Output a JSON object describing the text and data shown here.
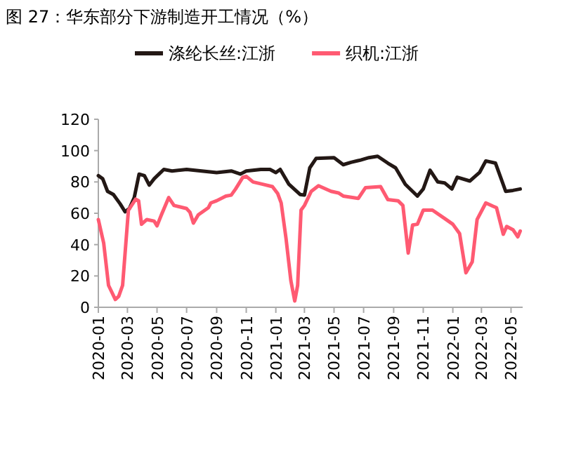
{
  "chart_data": {
    "type": "line",
    "title": "图 27：华东部分下游制造开工情况（%）",
    "legend": "top",
    "marker": "none",
    "line_style": "solid",
    "grid": false,
    "xlim": [
      "2020-01-01",
      "2022-05-25"
    ],
    "xticks": [
      "2020-01",
      "2020-03",
      "2020-05",
      "2020-07",
      "2020-09",
      "2020-11",
      "2021-01",
      "2021-03",
      "2021-05",
      "2021-07",
      "2021-09",
      "2021-11",
      "2022-01",
      "2022-03",
      "2022-05"
    ],
    "ylim": [
      0,
      120
    ],
    "yticks": [
      0,
      20,
      40,
      60,
      80,
      100,
      120
    ],
    "series": [
      {
        "name": "涤纶长丝:江浙",
        "color": "#231815",
        "x": [
          "2020-01-01",
          "2020-01-10",
          "2020-01-20",
          "2020-02-01",
          "2020-02-15",
          "2020-02-25",
          "2020-03-05",
          "2020-03-15",
          "2020-03-25",
          "2020-04-05",
          "2020-04-15",
          "2020-04-25",
          "2020-05-05",
          "2020-05-15",
          "2020-06-01",
          "2020-07-01",
          "2020-08-01",
          "2020-09-01",
          "2020-10-01",
          "2020-10-20",
          "2020-11-01",
          "2020-12-01",
          "2020-12-20",
          "2021-01-01",
          "2021-01-10",
          "2021-01-28",
          "2021-02-20",
          "2021-03-01",
          "2021-03-12",
          "2021-03-25",
          "2021-05-01",
          "2021-05-20",
          "2021-06-05",
          "2021-06-25",
          "2021-07-12",
          "2021-07-30",
          "2021-08-20",
          "2021-09-05",
          "2021-09-25",
          "2021-10-20",
          "2021-11-01",
          "2021-11-15",
          "2021-12-01",
          "2021-12-15",
          "2021-12-30",
          "2022-01-10",
          "2022-02-05",
          "2022-02-25",
          "2022-03-10",
          "2022-03-30",
          "2022-04-20",
          "2022-05-05",
          "2022-05-20"
        ],
        "values": [
          84,
          82,
          74,
          72,
          66,
          61,
          63,
          70,
          85,
          84,
          78,
          82,
          85,
          88,
          87,
          88,
          87,
          86,
          87,
          85,
          87,
          88,
          88,
          86,
          88,
          78.5,
          72,
          71.6,
          89,
          95,
          95.5,
          91,
          92.5,
          94,
          95.5,
          96.4,
          92,
          89,
          78.5,
          71,
          75.5,
          87.5,
          80,
          79.4,
          75.5,
          83,
          80.6,
          86,
          93.4,
          92,
          74,
          74.6,
          75.5
        ]
      },
      {
        "name": "织机:江浙",
        "color": "#ff5a72",
        "x": [
          "2020-01-01",
          "2020-01-12",
          "2020-01-22",
          "2020-02-05",
          "2020-02-12",
          "2020-02-20",
          "2020-03-03",
          "2020-03-18",
          "2020-03-24",
          "2020-03-30",
          "2020-04-10",
          "2020-04-25",
          "2020-05-01",
          "2020-05-10",
          "2020-05-25",
          "2020-06-05",
          "2020-07-01",
          "2020-07-08",
          "2020-07-15",
          "2020-07-25",
          "2020-08-15",
          "2020-08-20",
          "2020-09-01",
          "2020-09-20",
          "2020-10-01",
          "2020-10-10",
          "2020-10-25",
          "2020-11-01",
          "2020-11-15",
          "2020-12-05",
          "2020-12-25",
          "2021-01-05",
          "2021-01-12",
          "2021-01-22",
          "2021-02-01",
          "2021-02-09",
          "2021-02-15",
          "2021-02-22",
          "2021-03-01",
          "2021-03-15",
          "2021-03-30",
          "2021-04-25",
          "2021-05-10",
          "2021-05-20",
          "2021-06-20",
          "2021-07-05",
          "2021-08-05",
          "2021-08-20",
          "2021-09-10",
          "2021-09-20",
          "2021-10-01",
          "2021-10-10",
          "2021-10-20",
          "2021-11-01",
          "2021-11-20",
          "2021-12-15",
          "2022-01-01",
          "2022-01-15",
          "2022-01-28",
          "2022-02-10",
          "2022-02-20",
          "2022-03-10",
          "2022-03-25",
          "2022-04-01",
          "2022-04-15",
          "2022-04-22",
          "2022-05-05",
          "2022-05-15",
          "2022-05-20"
        ],
        "values": [
          56,
          41,
          14,
          5,
          7,
          14,
          62,
          69,
          68,
          53,
          56,
          55,
          52,
          59,
          70,
          65,
          63,
          60.6,
          53.7,
          59,
          63.6,
          66.6,
          68,
          71,
          71.6,
          75.5,
          83,
          83.6,
          80,
          78.5,
          77,
          72.5,
          66.6,
          44,
          17,
          4,
          14,
          62,
          65,
          74,
          77.6,
          74,
          73,
          71,
          69.5,
          76.4,
          77,
          68.7,
          68,
          65,
          34.6,
          52.5,
          53,
          62,
          62,
          56.7,
          53,
          47,
          22,
          29,
          56,
          66.6,
          64.5,
          63.6,
          46.6,
          51.6,
          49.5,
          45,
          48.7
        ]
      }
    ]
  }
}
